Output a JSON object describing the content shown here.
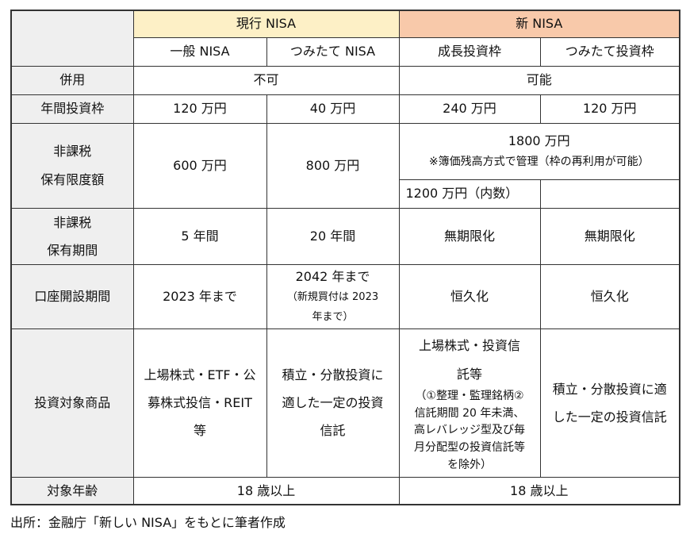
{
  "header": {
    "group_current": "現行 NISA",
    "group_new": "新 NISA",
    "cols": [
      "一般 NISA",
      "つみたて NISA",
      "成長投資枠",
      "つみたて投資枠"
    ]
  },
  "rows": {
    "concurrent": {
      "label": "併用",
      "current": "不可",
      "new": "可能"
    },
    "annual": {
      "label": "年間投資枠",
      "values": [
        "120 万円",
        "40 万円",
        "240 万円",
        "120 万円"
      ]
    },
    "limit": {
      "label_line1": "非課税",
      "label_line2": "保有限度額",
      "general": "600 万円",
      "tsumitate": "800 万円",
      "new_total": "1800 万円",
      "new_note": "※簿価残高方式で管理（枠の再利用が可能）",
      "growth_inner": "1200 万円（内数）"
    },
    "period": {
      "label_line1": "非課税",
      "label_line2": "保有期間",
      "values": [
        "5 年間",
        "20 年間",
        "無期限化",
        "無期限化"
      ]
    },
    "account": {
      "label": "口座開設期間",
      "general": "2023 年まで",
      "tsumitate_main": "2042 年まで",
      "tsumitate_note": "（新規買付は 2023 年まで）",
      "growth": "恒久化",
      "new_tsumitate": "恒久化"
    },
    "products": {
      "label": "投資対象商品",
      "general": "上場株式・ETF・公募株式投信・REIT 等",
      "tsumitate": "積立・分散投資に適した一定の投資信託",
      "growth_main": "上場株式・投資信託等",
      "growth_note": "（①整理・監理銘柄②信託期間 20 年未満、高レバレッジ型及び毎月分配型の投資信託等を除外）",
      "new_tsumitate": "積立・分散投資に適した一定の投資信託"
    },
    "age": {
      "label": "対象年齢",
      "current": "18 歳以上",
      "new": "18 歳以上"
    }
  },
  "source": "出所：金融庁「新しい NISA」をもとに筆者作成",
  "colors": {
    "current_header": "#fdf0c6",
    "new_header": "#f8c9aa",
    "label_bg": "#efefef"
  }
}
